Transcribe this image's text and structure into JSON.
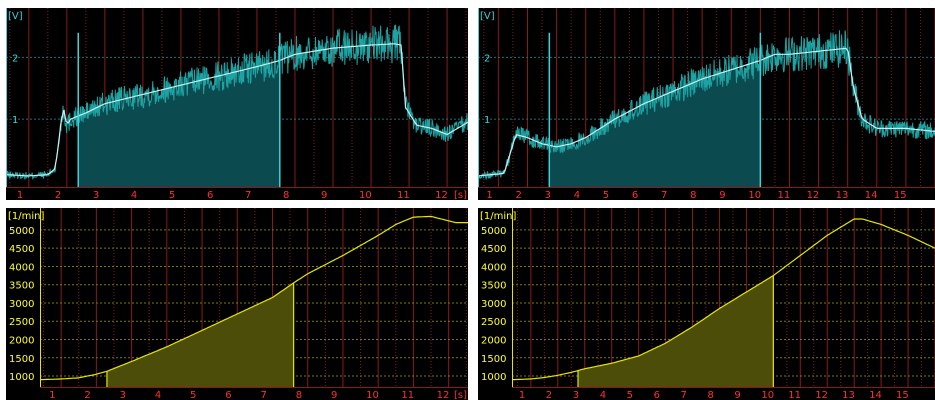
{
  "colors": {
    "background": "#000000",
    "grid_vertical": "#8a1a1a",
    "grid_horizontal_voltage": "#1f6f78",
    "grid_horizontal_rpm": "#7a7a10",
    "voltage_raw": "#1ea3a3",
    "voltage_fill": "#0b4a4f",
    "voltage_avg": "#c8f0f0",
    "voltage_label": "#3fd0d8",
    "rpm_line": "#e6e600",
    "rpm_fill": "#4d4d0a",
    "rpm_label": "#ffff30",
    "x_label": "#ff3030"
  },
  "chart_data": [
    {
      "panel": "voltage-left",
      "type": "line",
      "unit_label": "[V]",
      "x_unit_label": "[s]",
      "xlim": [
        0.4,
        12.55
      ],
      "ylim": [
        -0.1,
        2.8
      ],
      "x_ticks": [
        1,
        2,
        3,
        4,
        5,
        6,
        7,
        8,
        9,
        10,
        11,
        12
      ],
      "y_ticks": [
        1,
        2
      ],
      "x_tick_labels": [
        "1",
        "2",
        "3",
        "4",
        "5",
        "6",
        "7",
        "8",
        "9",
        "10",
        "11",
        "12"
      ],
      "y_tick_labels": [
        "1",
        "2"
      ],
      "shaded_interval": [
        2.3,
        7.6
      ],
      "series": [
        {
          "x": [
            0.4,
            1.0,
            1.5,
            1.7,
            1.8,
            1.9,
            2.0,
            2.1,
            2.3,
            2.5,
            3,
            4,
            5,
            6,
            7,
            7.6,
            8,
            9,
            10,
            10.6,
            10.8,
            10.9,
            11.2,
            11.6,
            12,
            12.55
          ],
          "y": [
            0.1,
            0.08,
            0.1,
            0.2,
            0.7,
            1.2,
            0.9,
            1.0,
            1.05,
            1.1,
            1.25,
            1.4,
            1.55,
            1.7,
            1.85,
            1.95,
            2.05,
            2.15,
            2.2,
            2.22,
            2.2,
            1.2,
            0.9,
            0.85,
            0.75,
            0.95
          ]
        }
      ]
    },
    {
      "panel": "voltage-right",
      "type": "line",
      "unit_label": "[V]",
      "xlim": [
        0.3,
        16.0
      ],
      "ylim": [
        -0.1,
        2.8
      ],
      "x_ticks": [
        1,
        2,
        3,
        4,
        5,
        6,
        7,
        8,
        9,
        10,
        11,
        12,
        13,
        14,
        15
      ],
      "y_ticks": [
        1,
        2
      ],
      "x_tick_labels": [
        "1",
        "2",
        "3",
        "4",
        "5",
        "6",
        "7",
        "8",
        "9",
        "10",
        "11",
        "12",
        "13",
        "14",
        "15"
      ],
      "y_tick_labels": [
        "1",
        "2"
      ],
      "shaded_interval": [
        2.75,
        10.0
      ],
      "series": [
        {
          "x": [
            0.3,
            1.2,
            1.6,
            2.0,
            2.5,
            3.0,
            3.5,
            4.0,
            5.0,
            6.0,
            7.0,
            8.0,
            9.0,
            10.0,
            10.5,
            11,
            12,
            13.0,
            13.2,
            13.5,
            14,
            15,
            16.0
          ],
          "y": [
            0.08,
            0.12,
            0.75,
            0.7,
            0.6,
            0.55,
            0.6,
            0.7,
            1.0,
            1.25,
            1.45,
            1.65,
            1.8,
            1.95,
            2.05,
            2.05,
            2.1,
            2.15,
            1.5,
            1.0,
            0.85,
            0.85,
            0.8
          ]
        }
      ]
    },
    {
      "panel": "rpm-left",
      "type": "area",
      "unit_label": "[1/min]",
      "x_unit_label": "[s]",
      "xlim": [
        0.4,
        12.55
      ],
      "ylim": [
        700,
        5600
      ],
      "x_ticks": [
        1,
        2,
        3,
        4,
        5,
        6,
        7,
        8,
        9,
        10,
        11,
        12
      ],
      "y_ticks": [
        1000,
        1500,
        2000,
        2500,
        3000,
        3500,
        4000,
        4500,
        5000
      ],
      "x_tick_labels": [
        "1",
        "2",
        "3",
        "4",
        "5",
        "6",
        "7",
        "8",
        "9",
        "10",
        "11",
        "12"
      ],
      "y_tick_labels": [
        "1000",
        "1500",
        "2000",
        "2500",
        "3000",
        "3500",
        "4000",
        "4500",
        "5000"
      ],
      "shaded_interval": [
        2.3,
        7.6
      ],
      "series": [
        {
          "x": [
            0.4,
            1.0,
            1.5,
            2.0,
            2.3,
            3,
            4,
            5,
            6,
            7,
            7.6,
            8,
            9,
            10,
            10.5,
            11,
            11.5,
            12.2
          ],
          "y": [
            900,
            920,
            950,
            1050,
            1130,
            1400,
            1800,
            2250,
            2700,
            3150,
            3550,
            3800,
            4300,
            4850,
            5150,
            5350,
            5370,
            5200
          ]
        }
      ]
    },
    {
      "panel": "rpm-right",
      "type": "area",
      "unit_label": "[1/min]",
      "xlim": [
        0.3,
        16.0
      ],
      "ylim": [
        700,
        5600
      ],
      "x_ticks": [
        1,
        2,
        3,
        4,
        5,
        6,
        7,
        8,
        9,
        10,
        11,
        12,
        13,
        14,
        15
      ],
      "y_ticks": [
        1000,
        1500,
        2000,
        2500,
        3000,
        3500,
        4000,
        4500,
        5000
      ],
      "x_tick_labels": [
        "1",
        "2",
        "3",
        "4",
        "5",
        "6",
        "7",
        "8",
        "9",
        "10",
        "11",
        "12",
        "13",
        "14",
        "15"
      ],
      "y_tick_labels": [
        "1000",
        "1500",
        "2000",
        "2500",
        "3000",
        "3500",
        "4000",
        "4500",
        "5000"
      ],
      "shaded_interval": [
        2.75,
        10.0
      ],
      "series": [
        {
          "x": [
            0.3,
            1.0,
            1.5,
            2.0,
            2.5,
            2.75,
            3,
            4,
            5,
            6,
            7,
            8,
            9,
            10,
            11,
            12,
            13,
            13.3,
            14,
            15,
            16.0
          ],
          "y": [
            900,
            920,
            960,
            1020,
            1100,
            1150,
            1200,
            1350,
            1550,
            1900,
            2350,
            2850,
            3300,
            3750,
            4300,
            4850,
            5300,
            5300,
            5150,
            4850,
            4500
          ]
        }
      ]
    }
  ]
}
